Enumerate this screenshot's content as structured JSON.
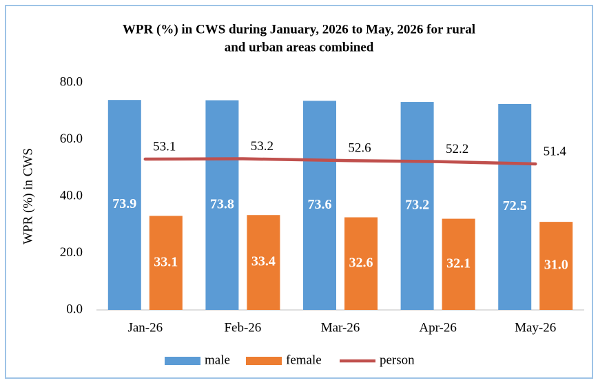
{
  "chart_data": {
    "type": "bar",
    "title": [
      "WPR (%) in CWS during January, 2026 to May, 2026 for rural",
      "and urban areas combined"
    ],
    "y_label": "WPR (%) in CWS",
    "categories": [
      "Jan-26",
      "Feb-26",
      "Mar-26",
      "Apr-26",
      "May-26"
    ],
    "series": [
      {
        "name": "male",
        "color": "#5b9bd5",
        "values": [
          73.9,
          73.8,
          73.6,
          73.2,
          72.5
        ],
        "value_labels": [
          "73.9",
          "73.8",
          "73.6",
          "73.2",
          "72.5"
        ]
      },
      {
        "name": "female",
        "color": "#ed7d31",
        "values": [
          33.1,
          33.4,
          32.6,
          32.1,
          31.0
        ],
        "value_labels": [
          "33.1",
          "33.4",
          "32.6",
          "32.1",
          "31.0"
        ]
      },
      {
        "name": "person",
        "type": "line",
        "color": "#c0504d",
        "values": [
          53.1,
          53.2,
          52.6,
          52.2,
          51.4
        ],
        "value_labels": [
          "53.1",
          "53.2",
          "52.6",
          "52.2",
          "51.4"
        ]
      }
    ],
    "ylim": [
      0,
      80
    ],
    "yticks": [
      {
        "value": 0,
        "label": "0.0"
      },
      {
        "value": 20,
        "label": "20.0"
      },
      {
        "value": 40,
        "label": "40.0"
      },
      {
        "value": 60,
        "label": "60.0"
      },
      {
        "value": 80,
        "label": "80.0"
      }
    ],
    "grid": false,
    "legend": "bottom"
  }
}
